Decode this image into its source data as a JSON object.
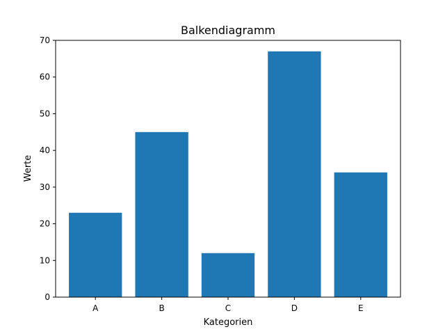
{
  "chart_data": {
    "type": "bar",
    "title": "Balkendiagramm",
    "xlabel": "Kategorien",
    "ylabel": "Werte",
    "categories": [
      "A",
      "B",
      "C",
      "D",
      "E"
    ],
    "values": [
      23,
      45,
      12,
      67,
      34
    ],
    "ylim": [
      0,
      70
    ],
    "yticks": [
      0,
      10,
      20,
      30,
      40,
      50,
      60,
      70
    ],
    "grid": false,
    "legend": "none",
    "bar_color": "#1f77b4"
  }
}
